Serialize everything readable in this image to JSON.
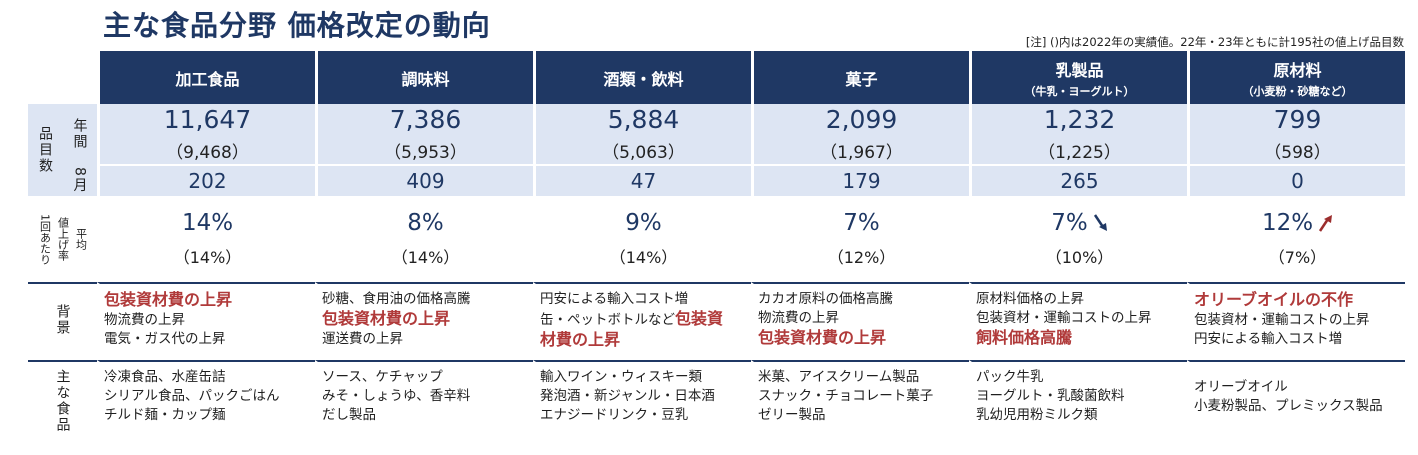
{
  "title": "主な食品分野  価格改定の動向",
  "note": "[注] ()内は2022年の実績値。22年・23年ともに計195社の値上げ品目数",
  "row_labels": {
    "items": "品目数",
    "annual": "年間",
    "august": "8月",
    "rate_main": "値上げ率",
    "rate_sub": "1回あたり",
    "rate_avg": "平均",
    "background": "背景",
    "foods": "主な食品"
  },
  "columns": [
    {
      "name": "加工食品",
      "sub": "",
      "annual": "11,647",
      "annual_prev": "（9,468）",
      "august": "202",
      "rate": "14%",
      "rate_prev": "（14%）",
      "trend": "",
      "background": [
        {
          "text": "包装資材費の上昇",
          "emph": true
        },
        {
          "text": "物流費の上昇",
          "emph": false
        },
        {
          "text": "電気・ガス代の上昇",
          "emph": false
        }
      ],
      "foods": [
        "冷凍食品、水産缶詰",
        "シリアル食品、パックごはん",
        "チルド麺・カップ麺"
      ]
    },
    {
      "name": "調味料",
      "sub": "",
      "annual": "7,386",
      "annual_prev": "（5,953）",
      "august": "409",
      "rate": "8%",
      "rate_prev": "（14%）",
      "trend": "",
      "background": [
        {
          "text": "砂糖、食用油の価格高騰",
          "emph": false
        },
        {
          "text": "包装資材費の上昇",
          "emph": true
        },
        {
          "text": "運送費の上昇",
          "emph": false
        }
      ],
      "foods": [
        "ソース、ケチャップ",
        "みそ・しょうゆ、香辛料",
        "だし製品"
      ]
    },
    {
      "name": "酒類・飲料",
      "sub": "",
      "annual": "5,884",
      "annual_prev": "（5,063）",
      "august": "47",
      "rate": "9%",
      "rate_prev": "（14%）",
      "trend": "",
      "background": [
        {
          "text": "円安による輸入コスト増",
          "emph": false
        },
        {
          "text": "缶・ペットボトルなど",
          "emph": false,
          "tail": "包装資"
        },
        {
          "text": "材費の上昇",
          "emph": true
        }
      ],
      "foods": [
        "輸入ワイン・ウィスキー類",
        "発泡酒・新ジャンル・日本酒",
        "エナジードリンク・豆乳"
      ]
    },
    {
      "name": "菓子",
      "sub": "",
      "annual": "2,099",
      "annual_prev": "（1,967）",
      "august": "179",
      "rate": "7%",
      "rate_prev": "（12%）",
      "trend": "",
      "background": [
        {
          "text": "カカオ原料の価格高騰",
          "emph": false
        },
        {
          "text": "物流費の上昇",
          "emph": false
        },
        {
          "text": "包装資材費の上昇",
          "emph": true
        }
      ],
      "foods": [
        "米菓、アイスクリーム製品",
        "スナック・チョコレート菓子",
        "ゼリー製品"
      ]
    },
    {
      "name": "乳製品",
      "sub": "（牛乳・ヨーグルト）",
      "annual": "1,232",
      "annual_prev": "（1,225）",
      "august": "265",
      "rate": "7%",
      "rate_prev": "（10%）",
      "trend": "down",
      "background": [
        {
          "text": "原材料価格の上昇",
          "emph": false
        },
        {
          "text": "包装資材・運輸コストの上昇",
          "emph": false
        },
        {
          "text": "飼料価格高騰",
          "emph": true
        }
      ],
      "foods": [
        "パック牛乳",
        "ヨーグルト・乳酸菌飲料",
        "乳幼児用粉ミルク類"
      ]
    },
    {
      "name": "原材料",
      "sub": "（小麦粉・砂糖など）",
      "annual": "799",
      "annual_prev": "（598）",
      "august": "0",
      "rate": "12%",
      "rate_prev": "（7%）",
      "trend": "up",
      "background": [
        {
          "text": "オリーブオイルの不作",
          "emph": true
        },
        {
          "text": "包装資材・運輸コストの上昇",
          "emph": false
        },
        {
          "text": "円安による輸入コスト増",
          "emph": false
        }
      ],
      "foods": [
        "オリーブオイル",
        "小麦粉製品、プレミックス製品"
      ]
    }
  ],
  "colors": {
    "header": "#1f3864",
    "band": "#dde5f3",
    "emphasis": "#b03a3a",
    "arrow_down": "#1f3864",
    "arrow_up": "#9b2d2d"
  }
}
